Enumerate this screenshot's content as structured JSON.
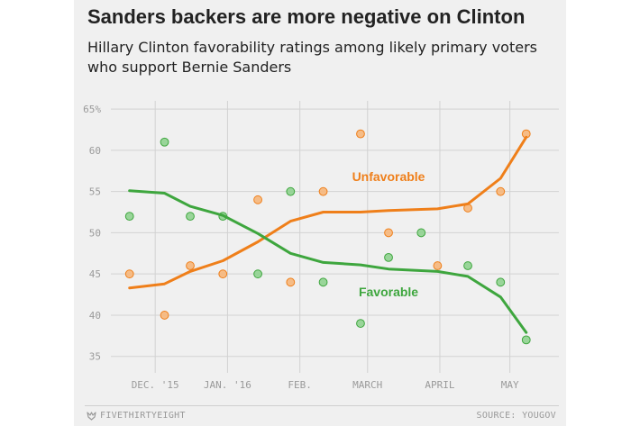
{
  "title": "Sanders backers are more negative on Clinton",
  "subtitle": "Hillary Clinton favorability ratings among likely primary voters who support Bernie Sanders",
  "footer": {
    "brand": "FIVETHIRTYEIGHT",
    "source": "SOURCE: YOUGOV"
  },
  "colors": {
    "unfavorable": "#ef7f1a",
    "favorable": "#3ea63e",
    "unfavorable_dot": "#f6b880",
    "favorable_dot": "#94d394"
  },
  "chart_data": {
    "type": "scatter",
    "title": "Sanders backers are more negative on Clinton",
    "subtitle": "Hillary Clinton favorability ratings among likely primary voters who support Bernie Sanders",
    "xlabel": "",
    "ylabel": "",
    "x_range": [
      "2015-11-12",
      "2016-05-22"
    ],
    "ylim": [
      33,
      66
    ],
    "y_ticks": [
      35,
      40,
      45,
      50,
      55,
      60,
      65
    ],
    "y_tick_labels": [
      "35",
      "40",
      "45",
      "50",
      "55",
      "60",
      "65%"
    ],
    "x_ticks": [
      {
        "date": "2015-12-01",
        "label": "DEC. '15"
      },
      {
        "date": "2016-01-01",
        "label": "JAN. '16"
      },
      {
        "date": "2016-02-01",
        "label": "FEB."
      },
      {
        "date": "2016-03-01",
        "label": "MARCH"
      },
      {
        "date": "2016-04-01",
        "label": "APRIL"
      },
      {
        "date": "2016-05-01",
        "label": "MAY"
      }
    ],
    "grid": true,
    "series": [
      {
        "name": "Unfavorable",
        "points": [
          {
            "x": "2015-11-20",
            "y": 45
          },
          {
            "x": "2015-12-05",
            "y": 40
          },
          {
            "x": "2015-12-16",
            "y": 46
          },
          {
            "x": "2015-12-30",
            "y": 45
          },
          {
            "x": "2016-01-14",
            "y": 54
          },
          {
            "x": "2016-01-28",
            "y": 44
          },
          {
            "x": "2016-02-11",
            "y": 55
          },
          {
            "x": "2016-02-27",
            "y": 62
          },
          {
            "x": "2016-03-10",
            "y": 50
          },
          {
            "x": "2016-03-31",
            "y": 46
          },
          {
            "x": "2016-04-13",
            "y": 53
          },
          {
            "x": "2016-04-27",
            "y": 55
          },
          {
            "x": "2016-05-08",
            "y": 62
          }
        ],
        "trend": [
          {
            "x": "2015-11-20",
            "y": 43.3
          },
          {
            "x": "2015-12-05",
            "y": 43.8
          },
          {
            "x": "2015-12-16",
            "y": 45.3
          },
          {
            "x": "2015-12-30",
            "y": 46.6
          },
          {
            "x": "2016-01-14",
            "y": 48.9
          },
          {
            "x": "2016-01-28",
            "y": 51.4
          },
          {
            "x": "2016-02-11",
            "y": 52.5
          },
          {
            "x": "2016-02-27",
            "y": 52.5
          },
          {
            "x": "2016-03-10",
            "y": 52.7
          },
          {
            "x": "2016-03-31",
            "y": 52.9
          },
          {
            "x": "2016-04-13",
            "y": 53.5
          },
          {
            "x": "2016-04-27",
            "y": 56.6
          },
          {
            "x": "2016-05-08",
            "y": 61.6
          }
        ]
      },
      {
        "name": "Favorable",
        "points": [
          {
            "x": "2015-11-20",
            "y": 52
          },
          {
            "x": "2015-12-05",
            "y": 61
          },
          {
            "x": "2015-12-16",
            "y": 52
          },
          {
            "x": "2015-12-30",
            "y": 52
          },
          {
            "x": "2016-01-14",
            "y": 45
          },
          {
            "x": "2016-01-28",
            "y": 55
          },
          {
            "x": "2016-02-11",
            "y": 44
          },
          {
            "x": "2016-02-27",
            "y": 39
          },
          {
            "x": "2016-03-10",
            "y": 47
          },
          {
            "x": "2016-03-24",
            "y": 50
          },
          {
            "x": "2016-04-13",
            "y": 46
          },
          {
            "x": "2016-04-27",
            "y": 44
          },
          {
            "x": "2016-05-08",
            "y": 37
          }
        ],
        "trend": [
          {
            "x": "2015-11-20",
            "y": 55.1
          },
          {
            "x": "2015-12-05",
            "y": 54.8
          },
          {
            "x": "2015-12-16",
            "y": 53.2
          },
          {
            "x": "2015-12-30",
            "y": 52.1
          },
          {
            "x": "2016-01-14",
            "y": 49.9
          },
          {
            "x": "2016-01-28",
            "y": 47.5
          },
          {
            "x": "2016-02-11",
            "y": 46.4
          },
          {
            "x": "2016-02-27",
            "y": 46.1
          },
          {
            "x": "2016-03-10",
            "y": 45.6
          },
          {
            "x": "2016-03-31",
            "y": 45.3
          },
          {
            "x": "2016-04-13",
            "y": 44.7
          },
          {
            "x": "2016-04-27",
            "y": 42.2
          },
          {
            "x": "2016-05-08",
            "y": 37.9
          }
        ]
      }
    ],
    "annotations": [
      {
        "series": "Unfavorable",
        "text": "Unfavorable",
        "x": "2016-03-10",
        "y": 56.3
      },
      {
        "series": "Favorable",
        "text": "Favorable",
        "x": "2016-03-10",
        "y": 42.3
      }
    ]
  }
}
